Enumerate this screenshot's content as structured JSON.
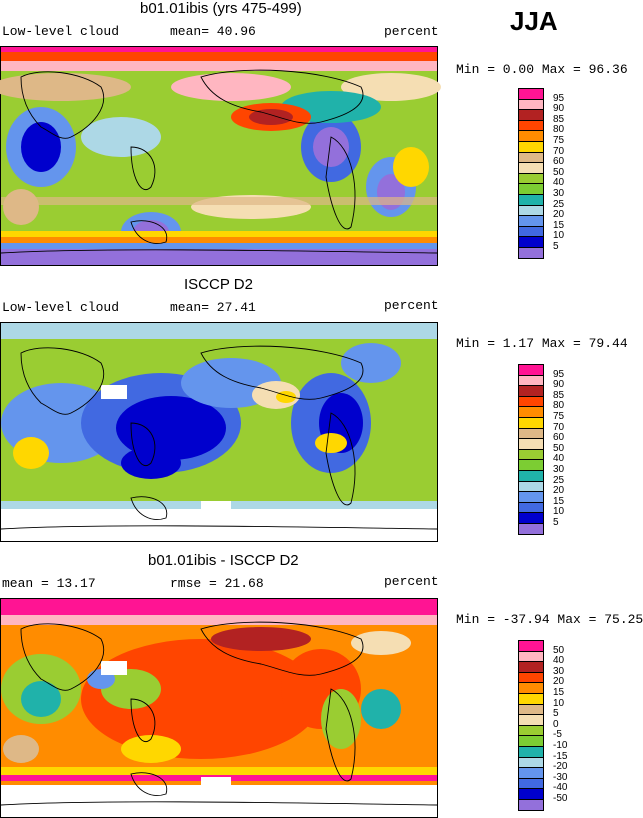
{
  "season": "JJA",
  "panels": [
    {
      "id": "model",
      "title": "b01.01ibis (yrs 475-499)",
      "left_text": "Low-level cloud",
      "stat_text": "mean=  40.96",
      "units": "percent",
      "minmax": "Min =   0.00 Max =  96.36",
      "colorbar": {
        "labels": [
          "95",
          "90",
          "85",
          "80",
          "75",
          "70",
          "60",
          "50",
          "40",
          "30",
          "25",
          "20",
          "15",
          "10",
          "5"
        ],
        "colors": [
          "#ff1493",
          "#ffb6c1",
          "#b22222",
          "#ff4500",
          "#ff8c00",
          "#ffd700",
          "#deb887",
          "#f5deb3",
          "#9acd32",
          "#7ccd33",
          "#20b2aa",
          "#add8e6",
          "#6495ed",
          "#4169e1",
          "#0000cd",
          "#9370db"
        ]
      }
    },
    {
      "id": "obs",
      "title": "ISCCP D2",
      "left_text": "Low-level cloud",
      "stat_text": "mean=  27.41",
      "units": "percent",
      "minmax": "Min =   1.17 Max =  79.44",
      "colorbar": {
        "labels": [
          "95",
          "90",
          "85",
          "80",
          "75",
          "70",
          "60",
          "50",
          "40",
          "30",
          "25",
          "20",
          "15",
          "10",
          "5"
        ],
        "colors": [
          "#ff1493",
          "#ffb6c1",
          "#b22222",
          "#ff4500",
          "#ff8c00",
          "#ffd700",
          "#deb887",
          "#f5deb3",
          "#9acd32",
          "#7ccd33",
          "#20b2aa",
          "#add8e6",
          "#6495ed",
          "#4169e1",
          "#0000cd",
          "#9370db"
        ]
      }
    },
    {
      "id": "diff",
      "title": "b01.01ibis - ISCCP D2",
      "left_text": "mean =  13.17",
      "stat_text": "rmse =  21.68",
      "units": "percent",
      "minmax": "Min = -37.94 Max =  75.25",
      "colorbar": {
        "labels": [
          "50",
          "40",
          "30",
          "20",
          "15",
          "10",
          "5",
          "0",
          "-5",
          "-10",
          "-15",
          "-20",
          "-30",
          "-40",
          "-50"
        ],
        "colors": [
          "#ff1493",
          "#ffb6c1",
          "#b22222",
          "#ff4500",
          "#ff8c00",
          "#ffd700",
          "#deb887",
          "#f5deb3",
          "#9acd32",
          "#7ccd33",
          "#20b2aa",
          "#add8e6",
          "#6495ed",
          "#4169e1",
          "#0000cd",
          "#9370db"
        ]
      }
    }
  ]
}
